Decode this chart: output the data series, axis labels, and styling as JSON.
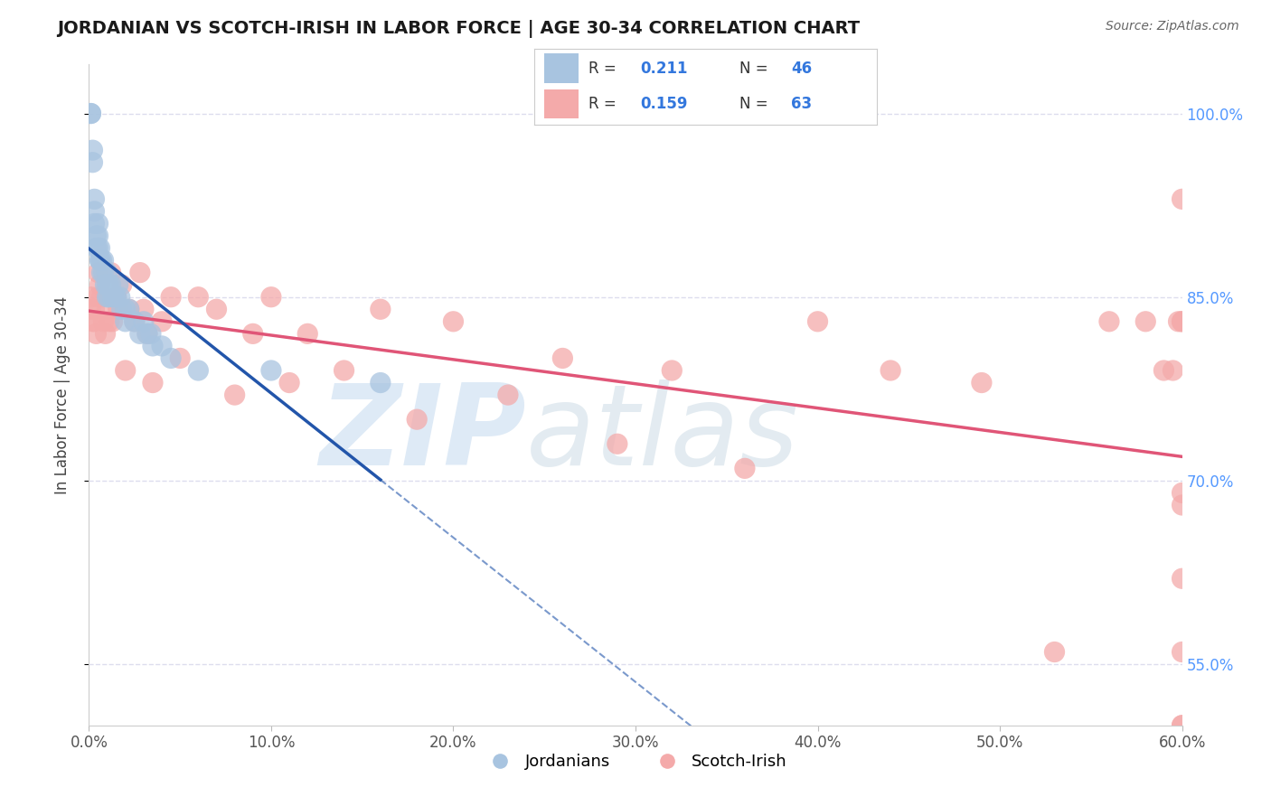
{
  "title": "JORDANIAN VS SCOTCH-IRISH IN LABOR FORCE | AGE 30-34 CORRELATION CHART",
  "source_text": "Source: ZipAtlas.com",
  "ylabel": "In Labor Force | Age 30-34",
  "xlim": [
    0.0,
    0.6
  ],
  "ylim": [
    0.5,
    1.04
  ],
  "xtick_labels": [
    "0.0%",
    "10.0%",
    "20.0%",
    "30.0%",
    "40.0%",
    "50.0%",
    "60.0%"
  ],
  "xtick_vals": [
    0.0,
    0.1,
    0.2,
    0.3,
    0.4,
    0.5,
    0.6
  ],
  "ytick_vals": [
    0.55,
    0.7,
    0.85,
    1.0
  ],
  "ytick_right_labels": [
    "55.0%",
    "70.0%",
    "85.0%",
    "100.0%"
  ],
  "legend_r1": "0.211",
  "legend_n1": "46",
  "legend_r2": "0.159",
  "legend_n2": "63",
  "legend_label1": "Jordanians",
  "legend_label2": "Scotch-Irish",
  "blue_color": "#A8C4E0",
  "pink_color": "#F4AAAA",
  "blue_line_color": "#2255AA",
  "pink_line_color": "#E05577",
  "dashed_color": "#AABBCC",
  "grid_color": "#DDDDEE",
  "rn_color": "#3377DD",
  "label_color": "#555555",
  "right_tick_color": "#5599FF",
  "jordanian_x": [
    0.001,
    0.001,
    0.002,
    0.002,
    0.003,
    0.003,
    0.003,
    0.004,
    0.004,
    0.005,
    0.005,
    0.005,
    0.006,
    0.006,
    0.006,
    0.007,
    0.007,
    0.008,
    0.008,
    0.009,
    0.01,
    0.01,
    0.01,
    0.011,
    0.011,
    0.012,
    0.013,
    0.014,
    0.015,
    0.016,
    0.017,
    0.018,
    0.02,
    0.02,
    0.022,
    0.025,
    0.028,
    0.03,
    0.032,
    0.034,
    0.035,
    0.04,
    0.045,
    0.06,
    0.1,
    0.16
  ],
  "jordanian_y": [
    1.0,
    1.0,
    0.97,
    0.96,
    0.93,
    0.92,
    0.91,
    0.9,
    0.89,
    0.91,
    0.9,
    0.89,
    0.89,
    0.88,
    0.88,
    0.88,
    0.87,
    0.88,
    0.87,
    0.86,
    0.87,
    0.86,
    0.85,
    0.86,
    0.85,
    0.86,
    0.85,
    0.85,
    0.85,
    0.86,
    0.85,
    0.84,
    0.84,
    0.83,
    0.84,
    0.83,
    0.82,
    0.83,
    0.82,
    0.82,
    0.81,
    0.81,
    0.8,
    0.79,
    0.79,
    0.78
  ],
  "scotch_x": [
    0.001,
    0.001,
    0.002,
    0.003,
    0.003,
    0.004,
    0.005,
    0.005,
    0.006,
    0.007,
    0.008,
    0.009,
    0.01,
    0.011,
    0.012,
    0.013,
    0.015,
    0.016,
    0.018,
    0.02,
    0.022,
    0.025,
    0.028,
    0.03,
    0.032,
    0.035,
    0.04,
    0.045,
    0.05,
    0.06,
    0.07,
    0.08,
    0.09,
    0.1,
    0.11,
    0.12,
    0.14,
    0.16,
    0.18,
    0.2,
    0.23,
    0.26,
    0.29,
    0.32,
    0.36,
    0.4,
    0.44,
    0.49,
    0.53,
    0.56,
    0.58,
    0.59,
    0.595,
    0.598,
    0.6,
    0.6,
    0.6,
    0.6,
    0.6,
    0.6,
    0.6,
    0.6,
    0.6
  ],
  "scotch_y": [
    0.85,
    0.84,
    0.83,
    0.84,
    0.83,
    0.82,
    0.87,
    0.85,
    0.86,
    0.85,
    0.83,
    0.82,
    0.84,
    0.83,
    0.87,
    0.83,
    0.85,
    0.84,
    0.86,
    0.79,
    0.84,
    0.83,
    0.87,
    0.84,
    0.82,
    0.78,
    0.83,
    0.85,
    0.8,
    0.85,
    0.84,
    0.77,
    0.82,
    0.85,
    0.78,
    0.82,
    0.79,
    0.84,
    0.75,
    0.83,
    0.77,
    0.8,
    0.73,
    0.79,
    0.71,
    0.83,
    0.79,
    0.78,
    0.56,
    0.83,
    0.83,
    0.79,
    0.79,
    0.83,
    0.56,
    0.83,
    0.5,
    0.62,
    0.5,
    0.83,
    0.69,
    0.68,
    0.93
  ]
}
